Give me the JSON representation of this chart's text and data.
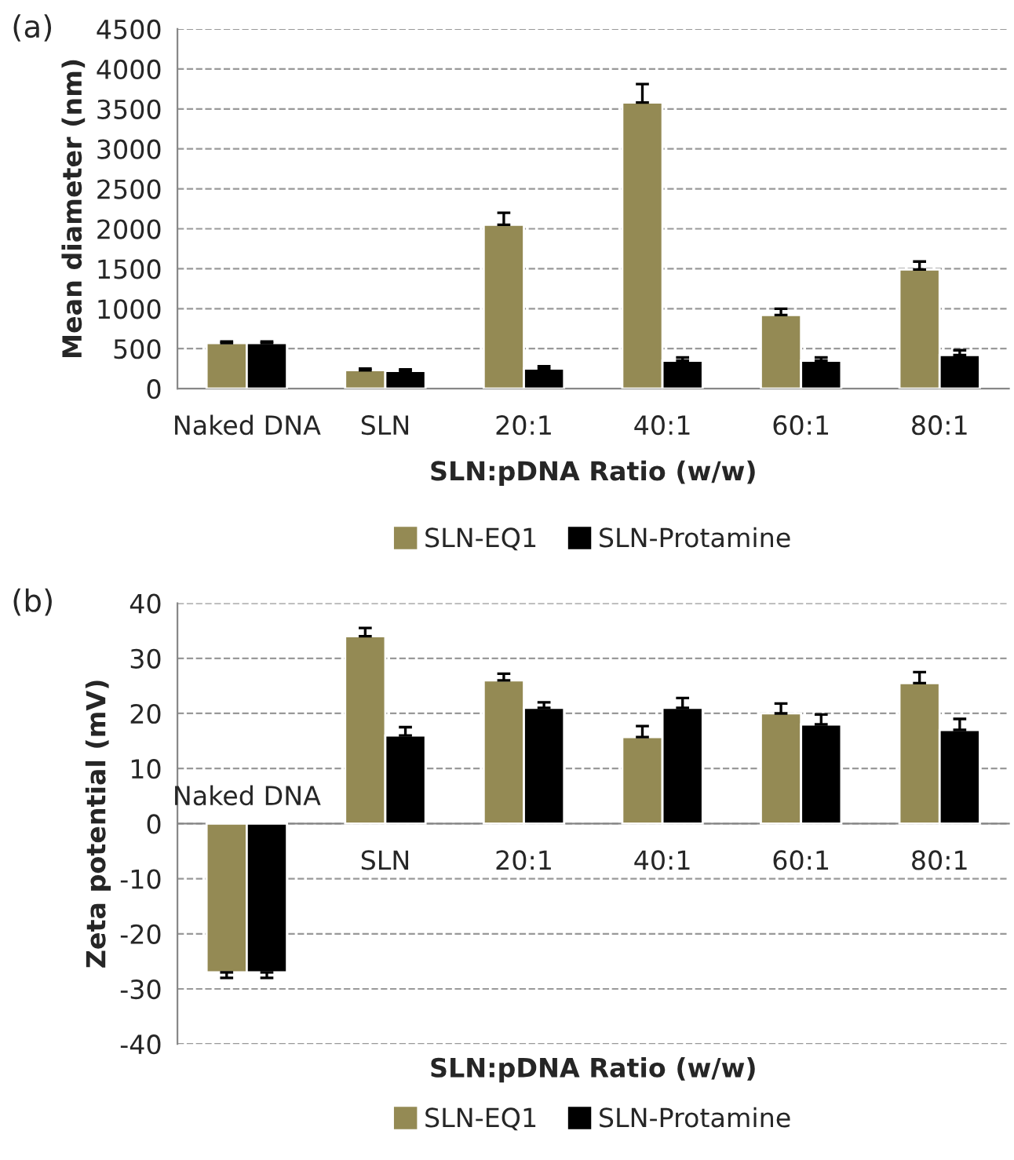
{
  "chart_data": [
    {
      "type": "bar",
      "categories": [
        "Naked DNA",
        "SLN",
        "20:1",
        "40:1",
        "60:1",
        "80:1"
      ],
      "xlabel": "SLN:pDNA Ratio (w/w)",
      "ylabel": "Mean diameter (nm)",
      "annotations": [
        "(a)"
      ],
      "ylim": [
        0,
        4500
      ],
      "yticks": [
        0,
        500,
        1000,
        1500,
        2000,
        2500,
        3000,
        3500,
        4000,
        4500
      ],
      "grid": "y",
      "legend": "bottom",
      "series": [
        {
          "name": "SLN-EQ1",
          "color": "#948a54",
          "values": [
            570,
            230,
            2050,
            3580,
            920,
            1490
          ],
          "errors": [
            20,
            20,
            150,
            230,
            80,
            100
          ]
        },
        {
          "name": "SLN-Protamine",
          "color": "#000000",
          "values": [
            570,
            220,
            250,
            350,
            350,
            420
          ],
          "errors": [
            20,
            20,
            30,
            40,
            40,
            60
          ]
        }
      ]
    },
    {
      "type": "bar",
      "categories": [
        "Naked DNA",
        "SLN",
        "20:1",
        "40:1",
        "60:1",
        "80:1"
      ],
      "xlabel": "SLN:pDNA Ratio (w/w)",
      "ylabel": "Zeta potential (mV)",
      "annotations": [
        "(b)"
      ],
      "ylim": [
        -40,
        40
      ],
      "yticks": [
        -40,
        -30,
        -20,
        -10,
        0,
        10,
        20,
        30,
        40
      ],
      "grid": "y",
      "legend": "bottom",
      "series": [
        {
          "name": "SLN-EQ1",
          "color": "#948a54",
          "values": [
            -27,
            34,
            26,
            15.7,
            20,
            25.5
          ],
          "errors": [
            1,
            1.5,
            1.2,
            2,
            1.8,
            2
          ]
        },
        {
          "name": "SLN-Protamine",
          "color": "#000000",
          "values": [
            -27,
            16,
            21,
            21,
            18,
            17
          ],
          "errors": [
            1,
            1.5,
            1,
            1.8,
            1.8,
            2
          ]
        }
      ]
    }
  ]
}
